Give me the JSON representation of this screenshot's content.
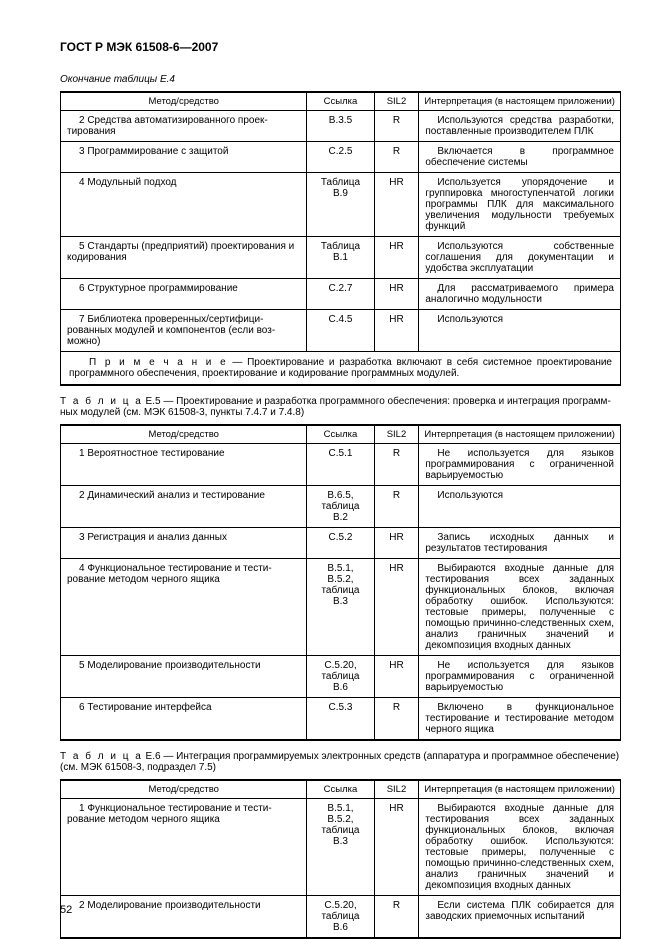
{
  "doc_title": "ГОСТ Р МЭК 61508-6—2007",
  "page_number": "52",
  "e4_caption": "Окончание таблицы Е.4",
  "headers": {
    "method": "Метод/средство",
    "ref": "Ссылка",
    "sil": "SIL2",
    "interp": "Интерпретация (в настоящем приложении)"
  },
  "e4_rows": [
    {
      "m": "2 Средства автоматизированного проек­тирования",
      "r": "B.3.5",
      "s": "R",
      "i": "Используются средства разработки, по­ставленные производителем ПЛК"
    },
    {
      "m": "3 Программирование с защитой",
      "r": "C.2.5",
      "s": "R",
      "i": "Включается в программное обеспечение системы"
    },
    {
      "m": "4 Модульный подход",
      "r": "Таблица B.9",
      "s": "HR",
      "i": "Используется упорядочение и группи­ровка многоступенчатой логики программы ПЛК для максимального увеличения модуль­ности требуемых функций"
    },
    {
      "m": "5 Стандарты (предприятий) проектирова­ния и кодирования",
      "r": "Таблица B.1",
      "s": "HR",
      "i": "Используются собственные соглашения для документации и удобства эксплуатации"
    },
    {
      "m": "6 Структурное программирование",
      "r": "C.2.7",
      "s": "HR",
      "i": "Для рассматриваемого примера анало­гично модульности"
    },
    {
      "m": "7 Библиотека проверенных/сертифици­рованных модулей и компонентов (если воз­можно)",
      "r": "C.4.5",
      "s": "HR",
      "i": "Используются"
    }
  ],
  "e4_note_prefix": "П р и м е ч а н и е",
  "e4_note": " — Проектирование и разработка включают в себя системное проектирование программ­ного обеспечения, проектирование и кодирование программных модулей.",
  "e5_caption_prefix": "Т а б л и ц а",
  "e5_caption": "  Е.5 — Проектирование и разработка программного обеспечения: проверка и интеграция программ­ных модулей (см. МЭК 61508-3, пункты 7.4.7 и 7.4.8)",
  "e5_rows": [
    {
      "m": "1 Вероятностное тестирование",
      "r": "C.5.1",
      "s": "R",
      "i": "Не используется для языков программи­рования с ограниченной варьируемостью"
    },
    {
      "m": "2 Динамический анализ и тестирование",
      "r": "B.6.5, таблица B.2",
      "s": "R",
      "i": "Используются"
    },
    {
      "m": "3 Регистрация и анализ данных",
      "r": "C.5.2",
      "s": "HR",
      "i": "Запись исходных данных и результатов тестирования"
    },
    {
      "m": "4 Функциональное тестирование и тести­рование методом черного ящика",
      "r": "B.5.1, B.5.2, таблица B.3",
      "s": "HR",
      "i": "Выбираются входные данные для тести­рования всех заданных функциональных блоков, включая обработку ошибок. Исполь­зуются: тестовые примеры, полученные с помощью причинно-следственных схем, анализ граничных значений и декомпозиция входных данных"
    },
    {
      "m": "5 Моделирование производительности",
      "r": "C.5.20, таблица B.6",
      "s": "HR",
      "i": "Не используется для языков программи­рования с ограниченной варьируемостью"
    },
    {
      "m": "6 Тестирование интерфейса",
      "r": "C.5.3",
      "s": "R",
      "i": "Включено в функциональное тестирова­ние и тестирование методом черного ящика"
    }
  ],
  "e6_caption_prefix": "Т а б л и ц а",
  "e6_caption": "  Е.6 — Интеграция программируемых электронных средств (аппаратура и программное обеспечение) (см. МЭК 61508-3, подраздел 7.5)",
  "e6_rows": [
    {
      "m": "1 Функциональное тестирование и тести­рование методом черного ящика",
      "r": "B.5.1, B.5.2, таблица B.3",
      "s": "HR",
      "i": "Выбираются входные данные для тести­рования всех заданных функциональных блоков, включая обработку ошибок. Исполь­зуются: тестовые примеры, полученные с помощью причинно-следственных схем, анализ граничных значений и декомпозиция входных данных"
    },
    {
      "m": "2 Моделирование производительности",
      "r": "C.5.20, таблица B.6",
      "s": "R",
      "i": "Если система ПЛК собирается для завод­ских приемочных испытаний"
    }
  ]
}
